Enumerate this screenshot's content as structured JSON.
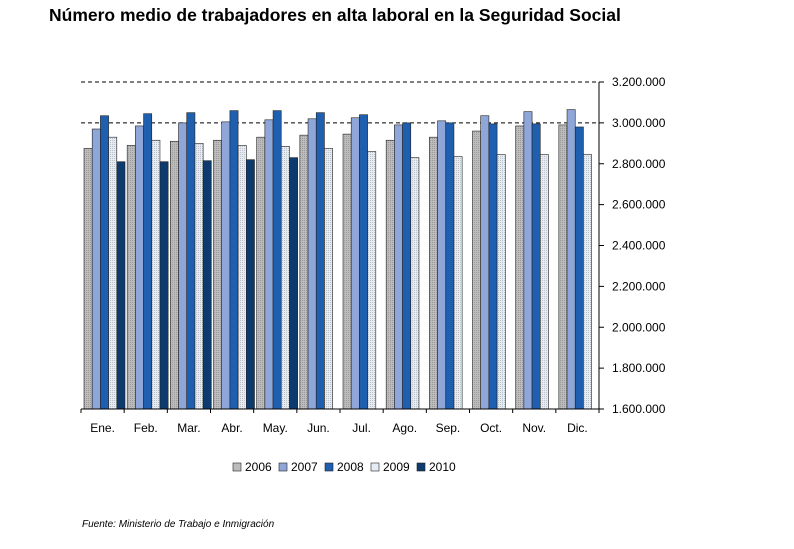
{
  "title": "Número medio de trabajadores en alta laboral en la Seguridad Social",
  "source": "Fuente: Ministerio de Trabajo e Inmigración",
  "chart_data": {
    "type": "bar",
    "title": "Número medio de trabajadores en alta laboral en la Seguridad Social",
    "xlabel": "",
    "ylabel": "",
    "categories": [
      "Ene.",
      "Feb.",
      "Mar.",
      "Abr.",
      "May.",
      "Jun.",
      "Jul.",
      "Ago.",
      "Sep.",
      "Oct.",
      "Nov.",
      "Dic."
    ],
    "ylim": [
      1600000,
      3200000
    ],
    "yticks": [
      1600000,
      1800000,
      2000000,
      2200000,
      2400000,
      2600000,
      2800000,
      3000000,
      3200000
    ],
    "ytick_labels": [
      "1.600.000",
      "1.800.000",
      "2.000.000",
      "2.200.000",
      "2.400.000",
      "2.600.000",
      "2.800.000",
      "3.000.000",
      "3.200.000"
    ],
    "y_axis_position": "right",
    "gridlines": [
      3000000,
      3200000
    ],
    "legend_position": "bottom",
    "series": [
      {
        "name": "2006",
        "color": "#bcbcbc",
        "values": [
          2875000,
          2890000,
          2910000,
          2915000,
          2930000,
          2940000,
          2945000,
          2915000,
          2930000,
          2960000,
          2985000,
          2990000
        ]
      },
      {
        "name": "2007",
        "color": "#8fa6d8",
        "values": [
          2970000,
          2985000,
          3000000,
          3005000,
          3015000,
          3020000,
          3025000,
          2990000,
          3010000,
          3035000,
          3055000,
          3065000
        ]
      },
      {
        "name": "2008",
        "color": "#1f5fb0",
        "values": [
          3035000,
          3045000,
          3050000,
          3060000,
          3060000,
          3050000,
          3040000,
          3000000,
          3000000,
          2995000,
          2995000,
          2980000
        ]
      },
      {
        "name": "2009",
        "color": "#e6ecf4",
        "values": [
          2930000,
          2915000,
          2900000,
          2890000,
          2885000,
          2875000,
          2860000,
          2830000,
          2835000,
          2845000,
          2845000,
          2845000
        ]
      },
      {
        "name": "2010",
        "color": "#0d3b6e",
        "values": [
          2810000,
          2810000,
          2815000,
          2820000,
          2830000,
          null,
          null,
          null,
          null,
          null,
          null,
          null
        ]
      }
    ]
  }
}
